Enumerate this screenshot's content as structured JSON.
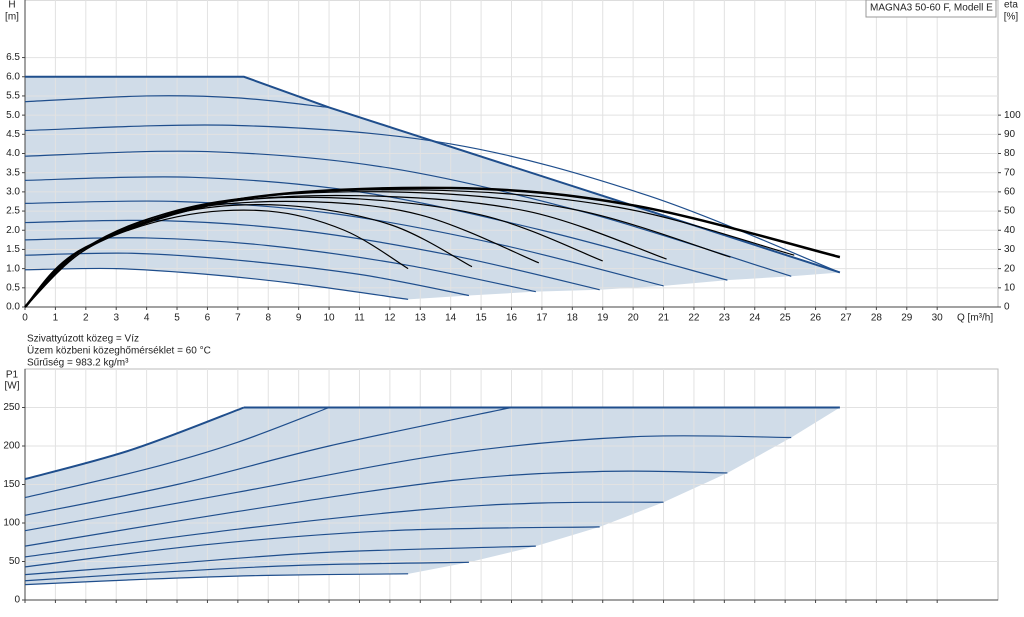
{
  "chart_data": [
    {
      "type": "line",
      "y_label": "H",
      "y_unit": "[m]",
      "y2_label": "eta",
      "y2_unit": "[%]",
      "x_label": "Q [m³/h]",
      "model": "MAGNA3 50-60 F, Modell E",
      "xlim": [
        0,
        32
      ],
      "ylim": [
        0,
        8
      ],
      "y2lim": [
        0,
        160
      ],
      "xticks": [
        0,
        1,
        2,
        3,
        4,
        5,
        6,
        7,
        8,
        9,
        10,
        11,
        12,
        13,
        14,
        15,
        16,
        17,
        18,
        19,
        20,
        21,
        22,
        23,
        24,
        25,
        26,
        27,
        28,
        29,
        30
      ],
      "x_tick_labels": true,
      "yticks": [
        {
          "value": 0,
          "label": "0.0"
        },
        {
          "value": 0.5,
          "label": "0.5"
        },
        {
          "value": 1,
          "label": "1.0"
        },
        {
          "value": 1.5,
          "label": "1.5"
        },
        {
          "value": 2,
          "label": "2.0"
        },
        {
          "value": 2.5,
          "label": "2.5"
        },
        {
          "value": 3,
          "label": "3.0"
        },
        {
          "value": 3.5,
          "label": "3.5"
        },
        {
          "value": 4,
          "label": "4.0"
        },
        {
          "value": 4.5,
          "label": "4.5"
        },
        {
          "value": 5,
          "label": "5.0"
        },
        {
          "value": 5.5,
          "label": "5.5"
        },
        {
          "value": 6,
          "label": "6.0"
        },
        {
          "value": 6.5,
          "label": "6.5"
        }
      ],
      "y2ticks": [
        0,
        10,
        20,
        30,
        40,
        50,
        60,
        70,
        80,
        90,
        100
      ],
      "grid": true,
      "area": {
        "color": "#d0dce8",
        "x": [
          0,
          7.2,
          10,
          26.8,
          25.2,
          23.1,
          21,
          18.9,
          16.8,
          14.6,
          12.6,
          9,
          6,
          3,
          0
        ],
        "values": [
          6,
          6,
          5.2,
          0.9,
          0.8,
          0.7,
          0.55,
          0.45,
          0.4,
          0.3,
          0.2,
          0.6,
          0.85,
          1.0,
          0.97
        ]
      },
      "series": [
        {
          "color": "#1f4e8c",
          "width": 2,
          "smooth": false,
          "x": [
            0,
            7.2,
            10,
            26.8
          ],
          "values": [
            6,
            6,
            5.2,
            0.9
          ]
        },
        {
          "color": "#1f4e8c",
          "width": 1.2,
          "smooth": true,
          "x": [
            0,
            3,
            6,
            9,
            12.6
          ],
          "values": [
            0.97,
            1.0,
            0.85,
            0.6,
            0.2
          ]
        },
        {
          "color": "#1f4e8c",
          "width": 1.2,
          "smooth": true,
          "x": [
            0,
            3.5,
            7,
            11,
            14.6
          ],
          "values": [
            1.35,
            1.4,
            1.22,
            0.85,
            0.3
          ]
        },
        {
          "color": "#1f4e8c",
          "width": 1.2,
          "smooth": true,
          "x": [
            0,
            4,
            8,
            12.5,
            16.8
          ],
          "values": [
            1.75,
            1.8,
            1.6,
            1.1,
            0.4
          ]
        },
        {
          "color": "#1f4e8c",
          "width": 1.2,
          "smooth": true,
          "x": [
            0,
            4.5,
            9,
            14,
            18.9
          ],
          "values": [
            2.2,
            2.25,
            2.0,
            1.35,
            0.45
          ]
        },
        {
          "color": "#1f4e8c",
          "width": 1.2,
          "smooth": true,
          "x": [
            0,
            5,
            10,
            15.5,
            21
          ],
          "values": [
            2.7,
            2.75,
            2.45,
            1.65,
            0.55
          ]
        },
        {
          "color": "#1f4e8c",
          "width": 1.2,
          "smooth": true,
          "x": [
            0,
            5.5,
            11,
            17,
            23.1
          ],
          "values": [
            3.3,
            3.38,
            3.0,
            2.0,
            0.7
          ]
        },
        {
          "color": "#1f4e8c",
          "width": 1.2,
          "smooth": true,
          "x": [
            0,
            6,
            12,
            18.5,
            25.2
          ],
          "values": [
            3.93,
            4.05,
            3.62,
            2.45,
            0.8
          ]
        },
        {
          "color": "#1f4e8c",
          "width": 1.2,
          "smooth": true,
          "x": [
            0,
            7,
            14,
            20.5,
            26.8
          ],
          "values": [
            4.6,
            4.73,
            4.25,
            2.9,
            0.9
          ]
        },
        {
          "color": "#1f4e8c",
          "width": 1.2,
          "smooth": true,
          "x": [
            0,
            4,
            7,
            10
          ],
          "values": [
            5.35,
            5.5,
            5.45,
            5.2
          ]
        },
        {
          "color": "#000000",
          "width": 1.2,
          "smooth": true,
          "axis": "y2",
          "x": [
            0,
            2,
            5,
            8,
            10.5,
            12.6
          ],
          "values": [
            0,
            30,
            47,
            50,
            40,
            20
          ]
        },
        {
          "color": "#000000",
          "width": 1.2,
          "smooth": true,
          "axis": "y2",
          "x": [
            0,
            2,
            5,
            8.5,
            12,
            14.7
          ],
          "values": [
            0,
            30,
            49,
            53,
            43,
            21
          ]
        },
        {
          "color": "#000000",
          "width": 1.2,
          "smooth": true,
          "axis": "y2",
          "x": [
            0,
            2,
            5,
            9,
            13,
            16.9
          ],
          "values": [
            0,
            31,
            50,
            55,
            48,
            23
          ]
        },
        {
          "color": "#000000",
          "width": 1.2,
          "smooth": true,
          "axis": "y2",
          "x": [
            0,
            2,
            5.5,
            10,
            15,
            19
          ],
          "values": [
            0,
            31,
            52,
            57,
            48,
            24
          ]
        },
        {
          "color": "#000000",
          "width": 1.2,
          "smooth": true,
          "axis": "y2",
          "x": [
            0,
            2,
            6,
            11,
            16.5,
            21.1
          ],
          "values": [
            0,
            31,
            53,
            58,
            50,
            25
          ]
        },
        {
          "color": "#000000",
          "width": 1.2,
          "smooth": true,
          "axis": "y2",
          "x": [
            0,
            2,
            6,
            12,
            18,
            23.2
          ],
          "values": [
            0,
            31,
            54,
            60,
            51,
            26
          ]
        },
        {
          "color": "#000000",
          "width": 1.2,
          "smooth": true,
          "axis": "y2",
          "x": [
            0,
            2,
            6.5,
            13,
            19.5,
            25.3
          ],
          "values": [
            0,
            31,
            55,
            61,
            52,
            27
          ]
        },
        {
          "color": "#000000",
          "width": 2.5,
          "smooth": true,
          "axis": "y2",
          "x": [
            0,
            2,
            7,
            14,
            20,
            26.8
          ],
          "values": [
            0,
            31,
            56,
            62,
            53,
            26
          ]
        }
      ]
    },
    {
      "type": "line",
      "y_label": "P1",
      "y_unit": "[W]",
      "xlim": [
        0,
        32
      ],
      "ylim": [
        0,
        300
      ],
      "xticks": [
        0,
        1,
        2,
        3,
        4,
        5,
        6,
        7,
        8,
        9,
        10,
        11,
        12,
        13,
        14,
        15,
        16,
        17,
        18,
        19,
        20,
        21,
        22,
        23,
        24,
        25,
        26,
        27,
        28,
        29,
        30
      ],
      "x_tick_labels": false,
      "yticks": [
        0,
        50,
        100,
        150,
        200,
        250
      ],
      "grid": true,
      "area": {
        "color": "#d0dce8",
        "x": [
          0,
          3.5,
          7.2,
          26.8,
          25.2,
          23.1,
          21,
          18.9,
          16.8,
          14.6,
          12.6,
          8,
          4,
          0
        ],
        "values": [
          157,
          195,
          250,
          250,
          211,
          165,
          127,
          95,
          70,
          49,
          34,
          32,
          27,
          20
        ]
      },
      "series": [
        {
          "color": "#1f4e8c",
          "width": 2,
          "smooth": true,
          "x": [
            0,
            3.5,
            7.2
          ],
          "values": [
            157,
            195,
            250
          ]
        },
        {
          "color": "#1f4e8c",
          "width": 2,
          "smooth": false,
          "x": [
            7.2,
            26.8
          ],
          "values": [
            250,
            250
          ]
        },
        {
          "color": "#1f4e8c",
          "width": 1.2,
          "smooth": true,
          "x": [
            0,
            4,
            8,
            12.6
          ],
          "values": [
            20,
            27,
            32,
            34
          ]
        },
        {
          "color": "#1f4e8c",
          "width": 1.2,
          "smooth": true,
          "x": [
            0,
            4,
            9,
            14.6
          ],
          "values": [
            25,
            35,
            45,
            49
          ]
        },
        {
          "color": "#1f4e8c",
          "width": 1.2,
          "smooth": true,
          "x": [
            0,
            5,
            10,
            16.8
          ],
          "values": [
            33,
            48,
            62,
            70
          ]
        },
        {
          "color": "#1f4e8c",
          "width": 1.2,
          "smooth": true,
          "x": [
            0,
            6,
            12,
            18.9
          ],
          "values": [
            43,
            72,
            90,
            95
          ]
        },
        {
          "color": "#1f4e8c",
          "width": 1.2,
          "smooth": true,
          "x": [
            0,
            7,
            13,
            17,
            21
          ],
          "values": [
            56,
            92,
            117,
            126,
            127
          ]
        },
        {
          "color": "#1f4e8c",
          "width": 1.2,
          "smooth": true,
          "x": [
            0,
            7,
            14,
            19,
            23.1
          ],
          "values": [
            70,
            115,
            155,
            167,
            165
          ]
        },
        {
          "color": "#1f4e8c",
          "width": 1.2,
          "smooth": true,
          "x": [
            0,
            7,
            14,
            20,
            25.2
          ],
          "values": [
            90,
            140,
            190,
            212,
            211
          ]
        },
        {
          "color": "#1f4e8c",
          "width": 1.2,
          "smooth": true,
          "x": [
            0,
            5,
            10,
            16
          ],
          "values": [
            110,
            150,
            200,
            250
          ]
        },
        {
          "color": "#1f4e8c",
          "width": 1.2,
          "smooth": true,
          "x": [
            0,
            4,
            7,
            10
          ],
          "values": [
            133,
            170,
            205,
            250
          ]
        }
      ]
    }
  ],
  "notes": [
    "Szivattyúzott közeg = Víz",
    "Üzem közbeni közeghőmérséklet = 60 °C",
    "Sűrűség = 983.2 kg/m³"
  ]
}
